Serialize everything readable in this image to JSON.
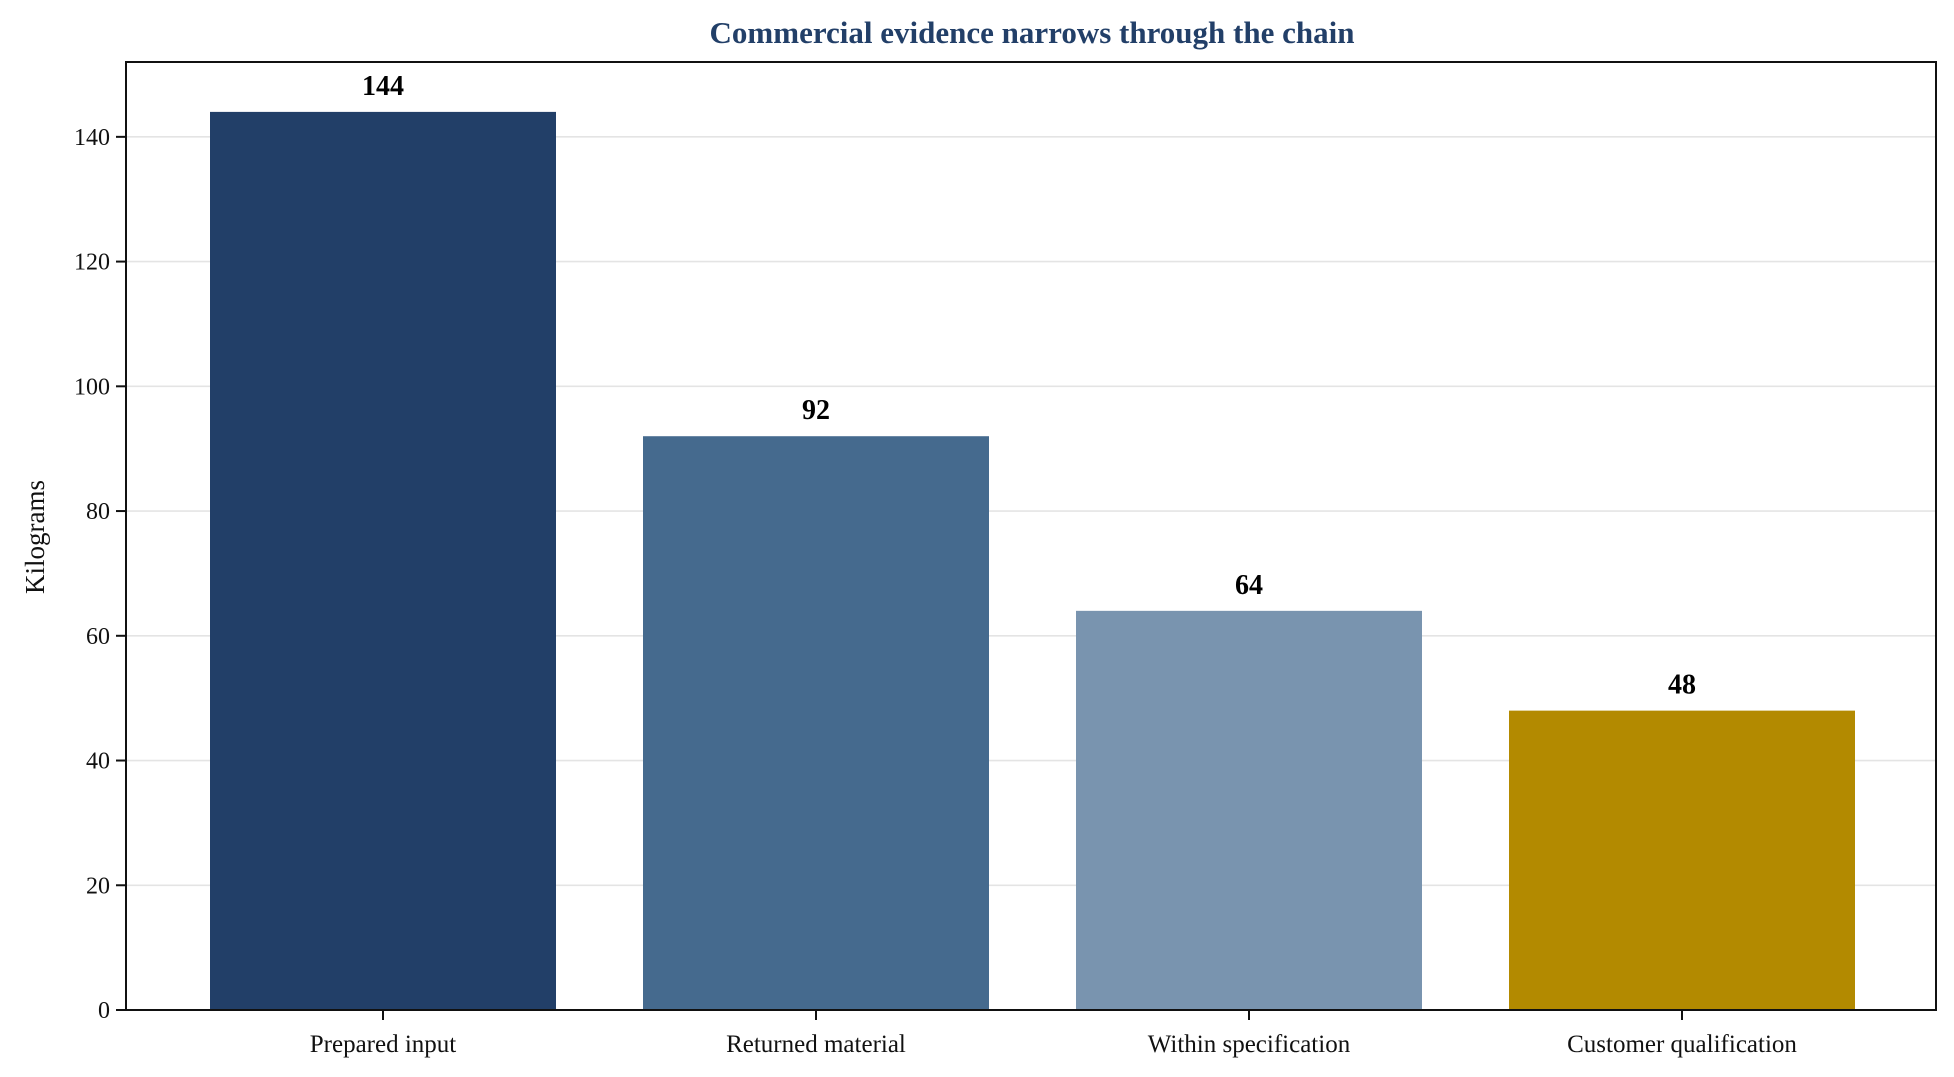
{
  "chart_data": {
    "type": "bar",
    "title": "Commercial evidence narrows through the chain",
    "xlabel": "",
    "ylabel": "Kilograms",
    "categories": [
      "Prepared input",
      "Returned material",
      "Within specification",
      "Customer qualification"
    ],
    "values": [
      144,
      92,
      64,
      48
    ],
    "value_labels": [
      "144",
      "92",
      "64",
      "48"
    ],
    "bar_colors": [
      "#223f68",
      "#456a8e",
      "#7994af",
      "#b38a00"
    ],
    "title_color": "#223f68",
    "ylim": [
      0,
      152
    ],
    "yticks": [
      0,
      20,
      40,
      60,
      80,
      100,
      120,
      140
    ],
    "grid": "horizontal",
    "legend": "none"
  }
}
